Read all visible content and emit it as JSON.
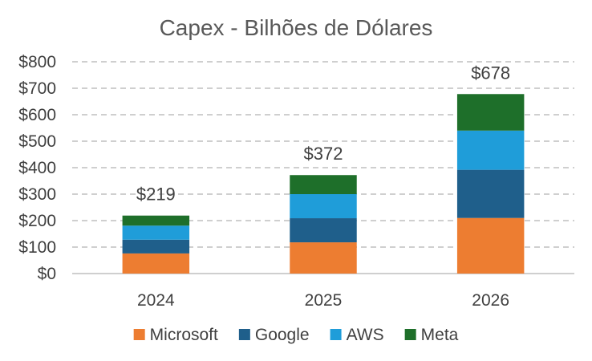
{
  "chart_data": {
    "type": "bar",
    "stacked": true,
    "title": "Capex - Bilhões de Dólares",
    "xlabel": "",
    "ylabel": "",
    "ylim": [
      0,
      800
    ],
    "yticks": [
      0,
      100,
      200,
      300,
      400,
      500,
      600,
      700,
      800
    ],
    "ytick_labels": [
      "$0",
      "$100",
      "$200",
      "$300",
      "$400",
      "$500",
      "$600",
      "$700",
      "$800"
    ],
    "grid": true,
    "legend_position": "bottom",
    "categories": [
      "2024",
      "2025",
      "2026"
    ],
    "series": [
      {
        "name": "Microsoft",
        "color": "#ED7D31",
        "values": [
          76,
          118,
          210
        ]
      },
      {
        "name": "Google",
        "color": "#1F5F8B",
        "values": [
          52,
          91,
          182
        ]
      },
      {
        "name": "AWS",
        "color": "#1F9DD9",
        "values": [
          53,
          91,
          148
        ]
      },
      {
        "name": "Meta",
        "color": "#1E6F2A",
        "values": [
          38,
          72,
          138
        ]
      }
    ],
    "totals": [
      "$219",
      "$372",
      "$678"
    ]
  }
}
